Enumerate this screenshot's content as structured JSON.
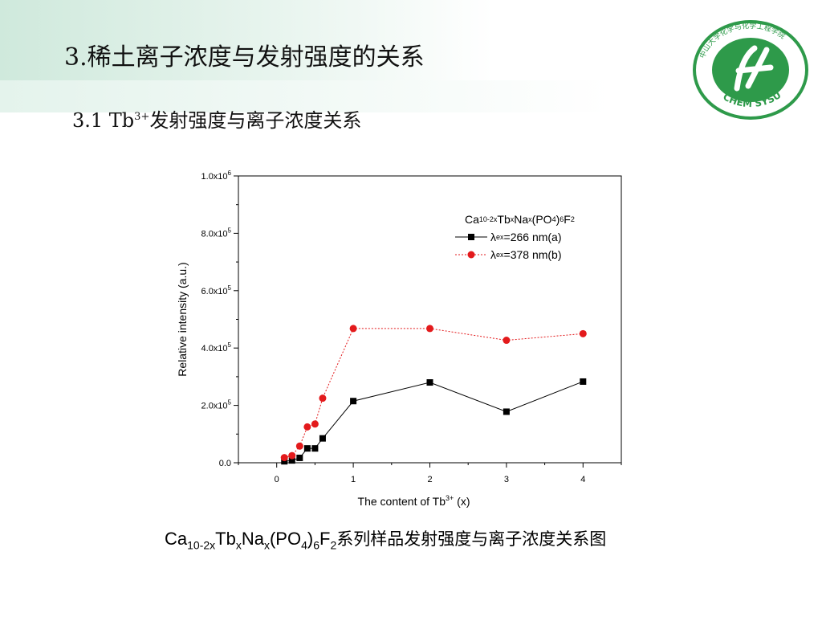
{
  "slide": {
    "title": "3.稀土离子浓度与发射强度的关系",
    "subtitle_prefix": "3.1 Tb",
    "subtitle_sup": "3+",
    "subtitle_suffix": "发射强度与离子浓度关系",
    "logo_text_top": "中山大学化学与化学工程学院",
    "logo_text_bottom": "CHEM SYSU",
    "logo_color": "#2e9a4a"
  },
  "caption": {
    "parts": [
      "Ca",
      "10-2x",
      "Tb",
      "x",
      "Na",
      "x",
      "(PO",
      "4",
      ")",
      "6",
      "F",
      "2"
    ],
    "suffix": "系列样品发射强度与离子浓度关系图"
  },
  "legend": {
    "formula_parts": [
      "Ca",
      "10-2x",
      "Tb",
      "x",
      "Na",
      "x",
      "(PO",
      "4",
      ")",
      "6",
      "F",
      "2"
    ],
    "series_a_prefix": "λ",
    "series_a_sub": "ex",
    "series_a_suffix": "=266 nm(a)",
    "series_b_prefix": "λ",
    "series_b_sub": "ex",
    "series_b_suffix": "=378 nm(b)"
  },
  "chart_data": {
    "type": "line",
    "xlabel": "The content of Tb",
    "xlabel_sup": "3+",
    "xlabel_suffix": " (x)",
    "ylabel": "Relative intensity (a.u.)",
    "xlim": [
      -0.5,
      4.5
    ],
    "ylim": [
      0,
      1000000
    ],
    "x_ticks": [
      0,
      1,
      2,
      3,
      4
    ],
    "y_ticks": [
      {
        "value": 0,
        "label": "0.0",
        "exp": ""
      },
      {
        "value": 200000,
        "label": "2.0x10",
        "exp": "5"
      },
      {
        "value": 400000,
        "label": "4.0x10",
        "exp": "5"
      },
      {
        "value": 600000,
        "label": "6.0x10",
        "exp": "5"
      },
      {
        "value": 800000,
        "label": "8.0x10",
        "exp": "5"
      },
      {
        "value": 1000000,
        "label": "1.0x10",
        "exp": "6"
      }
    ],
    "grid": false,
    "legend_position": "top-right",
    "series": [
      {
        "name": "λex=266 nm(a)",
        "color": "#000000",
        "marker": "square",
        "line": "solid",
        "x": [
          0.1,
          0.2,
          0.3,
          0.4,
          0.5,
          0.6,
          1,
          2,
          3,
          4
        ],
        "y": [
          5000,
          8000,
          17000,
          50000,
          50000,
          85000,
          215000,
          280000,
          178000,
          283000
        ]
      },
      {
        "name": "λex=378 nm(b)",
        "color": "#e31a1c",
        "marker": "circle",
        "line": "dashed",
        "x": [
          0.1,
          0.2,
          0.3,
          0.4,
          0.5,
          0.6,
          1,
          2,
          3,
          4
        ],
        "y": [
          18000,
          25000,
          58000,
          125000,
          135000,
          225000,
          468000,
          468000,
          427000,
          450000
        ]
      }
    ]
  }
}
